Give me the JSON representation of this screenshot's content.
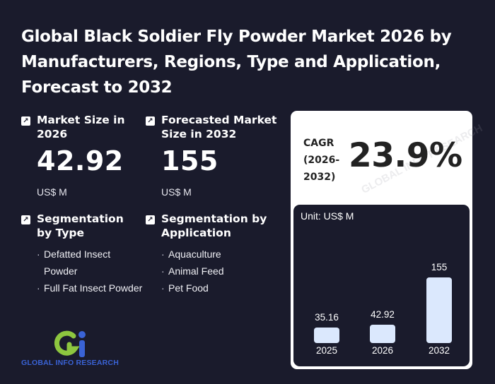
{
  "title": "Global Black Soldier Fly Powder Market 2026 by Manufacturers, Regions, Type and Application, Forecast to 2032",
  "market_size": {
    "label": "Market Size in 2026",
    "value": "42.92",
    "unit": "US$ M"
  },
  "forecast_size": {
    "label": "Forecasted Market Size in 2032",
    "value": "155",
    "unit": "US$ M"
  },
  "segmentation_type": {
    "label": "Segmentation by Type",
    "items": [
      "Defatted Insect Powder",
      "Full Fat Insect Powder"
    ]
  },
  "segmentation_application": {
    "label": "Segmentation by Application",
    "items": [
      "Aquaculture",
      "Animal Feed",
      "Pet Food"
    ]
  },
  "cagr": {
    "label": "CAGR (2026-2032)",
    "value": "23.9%"
  },
  "logo_text": "GLOBAL INFO RESEARCH",
  "chart_data": {
    "type": "bar",
    "unit_label": "Unit: US$ M",
    "categories": [
      "2025",
      "2026",
      "2032"
    ],
    "values": [
      35.16,
      42.92,
      155
    ],
    "value_labels": [
      "35.16",
      "42.92",
      "155"
    ],
    "bar_color": "#dbe8fd",
    "ylim": [
      0,
      155
    ]
  },
  "colors": {
    "background": "#1a1b2c",
    "card": "#ffffff",
    "bar": "#dbe8fd",
    "logo_blue": "#3a63d6",
    "logo_green": "#8dc63f"
  }
}
